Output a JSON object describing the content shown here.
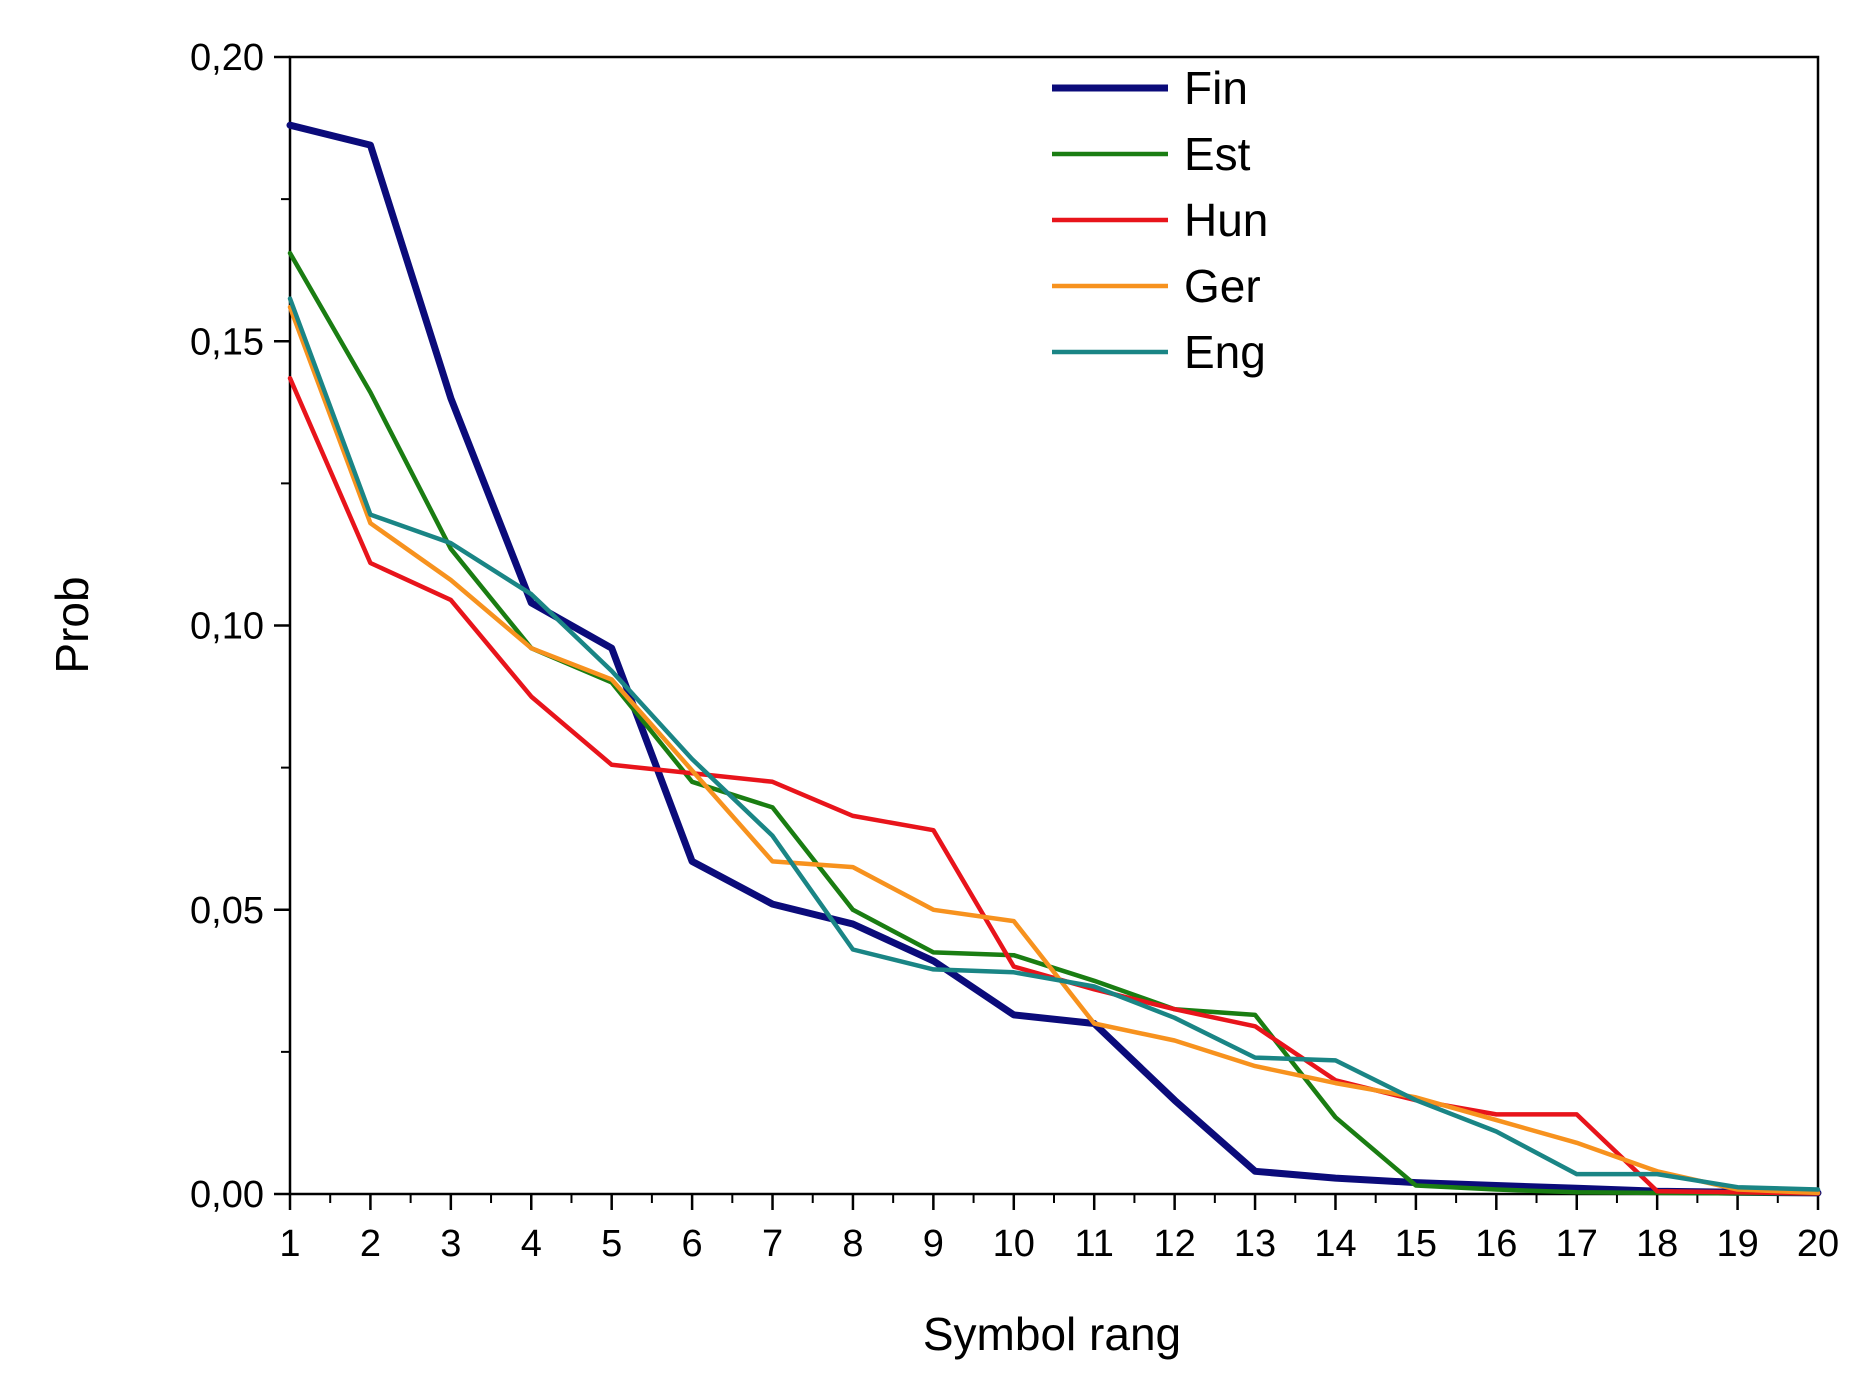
{
  "chart_data": {
    "type": "line",
    "title": "",
    "xlabel": "Symbol rang",
    "ylabel": "Prob",
    "x": [
      1,
      2,
      3,
      4,
      5,
      6,
      7,
      8,
      9,
      10,
      11,
      12,
      13,
      14,
      15,
      16,
      17,
      18,
      19,
      20
    ],
    "xlim": [
      1,
      20
    ],
    "ylim": [
      0,
      0.2
    ],
    "y_ticks": [
      0,
      0.05,
      0.1,
      0.15,
      0.2
    ],
    "y_tick_labels": [
      "0,00",
      "0,05",
      "0,10",
      "0,15",
      "0,20"
    ],
    "x_tick_labels": [
      "1",
      "2",
      "3",
      "4",
      "5",
      "6",
      "7",
      "8",
      "9",
      "10",
      "11",
      "12",
      "13",
      "14",
      "15",
      "16",
      "17",
      "18",
      "19",
      "20"
    ],
    "grid": false,
    "legend_position": "top-center",
    "series": [
      {
        "name": "Fin",
        "color": "#0b0b7a",
        "width": "thick",
        "values": [
          0.188,
          0.1845,
          0.14,
          0.104,
          0.096,
          0.0585,
          0.051,
          0.0475,
          0.041,
          0.0315,
          0.03,
          0.0165,
          0.004,
          0.0028,
          0.002,
          0.0015,
          0.001,
          0.0005,
          0.0003,
          0.0002
        ]
      },
      {
        "name": "Est",
        "color": "#1a7d12",
        "width": "normal",
        "values": [
          0.1655,
          0.141,
          0.1135,
          0.096,
          0.09,
          0.0725,
          0.068,
          0.05,
          0.0425,
          0.042,
          0.0375,
          0.0325,
          0.0315,
          0.0135,
          0.0015,
          0.0008,
          0.0003,
          0.0002,
          0.0001,
          0.0001
        ]
      },
      {
        "name": "Hun",
        "color": "#e8141b",
        "width": "normal",
        "values": [
          0.1435,
          0.111,
          0.1045,
          0.0875,
          0.0755,
          0.074,
          0.0725,
          0.0665,
          0.064,
          0.04,
          0.036,
          0.0325,
          0.0295,
          0.02,
          0.0165,
          0.014,
          0.014,
          0.0005,
          0.0003,
          0.0001
        ]
      },
      {
        "name": "Ger",
        "color": "#f7921e",
        "width": "normal",
        "values": [
          0.156,
          0.118,
          0.108,
          0.096,
          0.0905,
          0.0745,
          0.0585,
          0.0575,
          0.05,
          0.048,
          0.03,
          0.027,
          0.0225,
          0.0195,
          0.017,
          0.013,
          0.009,
          0.004,
          0.0008,
          0.0002
        ]
      },
      {
        "name": "Eng",
        "color": "#1a8585",
        "width": "normal",
        "values": [
          0.1575,
          0.1195,
          0.1145,
          0.1055,
          0.092,
          0.0765,
          0.063,
          0.043,
          0.0395,
          0.039,
          0.0365,
          0.031,
          0.024,
          0.0235,
          0.0165,
          0.011,
          0.0035,
          0.0035,
          0.0012,
          0.0008
        ]
      }
    ]
  }
}
